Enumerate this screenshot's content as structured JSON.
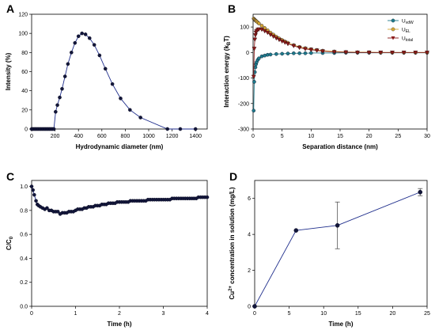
{
  "chart_data": [
    {
      "panel": "A",
      "type": "line",
      "xlabel": "Hydrodynamic diameter (nm)",
      "ylabel": "Intensity (%)",
      "xlim": [
        0,
        1500
      ],
      "ylim": [
        0,
        120
      ],
      "xticks": [
        0,
        200,
        400,
        600,
        800,
        1000,
        1200,
        1400
      ],
      "yticks": [
        0,
        20,
        40,
        60,
        80,
        100,
        120
      ],
      "colors": {
        "line": "#1f2e8c",
        "marker": "#12163a"
      },
      "series": [
        {
          "x": [
            0,
            10,
            20,
            30,
            40,
            50,
            60,
            70,
            80,
            90,
            100,
            110,
            120,
            130,
            140,
            150,
            160,
            170,
            180,
            190,
            205,
            220,
            240,
            260,
            285,
            310,
            340,
            370,
            400,
            430,
            460,
            495,
            535,
            580,
            630,
            690,
            760,
            840,
            930,
            1160,
            1270,
            1400
          ],
          "y": [
            0,
            0,
            0,
            0,
            0,
            0,
            0,
            0,
            0,
            0,
            0,
            0,
            0,
            0,
            0,
            0,
            0,
            0,
            0,
            0,
            18,
            25,
            33,
            42,
            55,
            68,
            80,
            90,
            97,
            100,
            99,
            95,
            88,
            77,
            63,
            47,
            32,
            20,
            12,
            0,
            0,
            0
          ]
        }
      ]
    },
    {
      "panel": "B",
      "type": "line",
      "xlabel": "Separation distance (nm)",
      "ylabel": "Interaction energy (kBT)",
      "xlim": [
        0,
        30
      ],
      "ylim": [
        -300,
        150
      ],
      "xticks": [
        0,
        5,
        10,
        15,
        20,
        25,
        30
      ],
      "yticks": [
        -300,
        -200,
        -100,
        0,
        100
      ],
      "legend": {
        "placement": "top-right",
        "entries": [
          "UvdW",
          "UEL",
          "Utotal"
        ]
      },
      "series": [
        {
          "name": "UvdW",
          "color": "#1f7a8c",
          "marker": "circle",
          "x": [
            0.1,
            0.2,
            0.3,
            0.4,
            0.5,
            0.6,
            0.8,
            1,
            1.5,
            2,
            2.5,
            3,
            4,
            5,
            6,
            7,
            8,
            9,
            10,
            12,
            14,
            16,
            18,
            20,
            22,
            24,
            26,
            28,
            30
          ],
          "y": [
            -228,
            -115,
            -77,
            -58,
            -46,
            -38,
            -29,
            -23,
            -15,
            -12,
            -9,
            -8,
            -6,
            -5,
            -4,
            -3,
            -3,
            -3,
            -2,
            -2,
            -2,
            -1,
            -1,
            -1,
            -1,
            -1,
            -1,
            -1,
            -1
          ]
        },
        {
          "name": "UEL",
          "color": "#d4a636",
          "marker": "circle",
          "x": [
            0.1,
            0.2,
            0.3,
            0.4,
            0.5,
            0.6,
            0.8,
            1,
            1.5,
            2,
            2.5,
            3,
            3.5,
            4,
            4.5,
            5,
            5.5,
            6,
            7,
            8,
            9,
            10,
            11,
            12,
            14,
            16,
            18,
            20,
            22,
            24,
            26,
            28,
            30
          ],
          "y": [
            133,
            130,
            128,
            126,
            124,
            122,
            118,
            114,
            105,
            96,
            87,
            78,
            70,
            62,
            55,
            49,
            43,
            38,
            29,
            22,
            17,
            13,
            10,
            7,
            4,
            2,
            1,
            1,
            0,
            0,
            0,
            0,
            0
          ]
        },
        {
          "name": "Utotal",
          "color": "#8b1a1a",
          "marker": "triangle",
          "x": [
            0.1,
            0.2,
            0.3,
            0.4,
            0.5,
            0.6,
            0.8,
            1,
            1.5,
            2,
            2.5,
            3,
            3.5,
            4,
            4.5,
            5,
            5.5,
            6,
            7,
            8,
            9,
            10,
            11,
            12,
            14,
            16,
            18,
            20,
            22,
            24,
            26,
            28,
            30
          ],
          "y": [
            -95,
            15,
            51,
            68,
            78,
            84,
            89,
            91,
            90,
            84,
            78,
            70,
            63,
            56,
            50,
            44,
            39,
            34,
            26,
            19,
            14,
            11,
            8,
            5,
            2,
            1,
            0,
            0,
            0,
            0,
            0,
            0,
            0
          ]
        }
      ]
    },
    {
      "panel": "C",
      "type": "line",
      "xlabel": "Time (h)",
      "ylabel": "C/C0",
      "xlim": [
        0,
        4
      ],
      "ylim": [
        0,
        1.05
      ],
      "xticks": [
        0,
        1,
        2,
        3,
        4
      ],
      "yticks": [
        0.0,
        0.2,
        0.4,
        0.6,
        0.8,
        1.0
      ],
      "colors": {
        "line": "#1f2e8c",
        "marker": "#12163a"
      },
      "series": [
        {
          "x": [
            0.0,
            0.03,
            0.06,
            0.1,
            0.13,
            0.16,
            0.2,
            0.25,
            0.3,
            0.35,
            0.4,
            0.45,
            0.5,
            0.55,
            0.6,
            0.65,
            0.7,
            0.75,
            0.8,
            0.85,
            0.9,
            0.95,
            1.0,
            1.05,
            1.1,
            1.15,
            1.2,
            1.25,
            1.3,
            1.35,
            1.4,
            1.45,
            1.5,
            1.55,
            1.6,
            1.65,
            1.7,
            1.75,
            1.8,
            1.85,
            1.9,
            1.95,
            2.0,
            2.05,
            2.1,
            2.15,
            2.2,
            2.25,
            2.3,
            2.35,
            2.4,
            2.45,
            2.5,
            2.55,
            2.6,
            2.65,
            2.7,
            2.75,
            2.8,
            2.85,
            2.9,
            2.95,
            3.0,
            3.05,
            3.1,
            3.15,
            3.2,
            3.25,
            3.3,
            3.35,
            3.4,
            3.45,
            3.5,
            3.55,
            3.6,
            3.65,
            3.7,
            3.75,
            3.8,
            3.85,
            3.9,
            3.95,
            4.0
          ],
          "y": [
            1.0,
            0.97,
            0.93,
            0.88,
            0.85,
            0.84,
            0.83,
            0.82,
            0.81,
            0.82,
            0.8,
            0.8,
            0.79,
            0.79,
            0.79,
            0.77,
            0.78,
            0.78,
            0.78,
            0.79,
            0.79,
            0.79,
            0.8,
            0.81,
            0.81,
            0.81,
            0.82,
            0.82,
            0.83,
            0.83,
            0.83,
            0.84,
            0.84,
            0.84,
            0.85,
            0.85,
            0.85,
            0.86,
            0.86,
            0.86,
            0.86,
            0.87,
            0.87,
            0.87,
            0.87,
            0.87,
            0.87,
            0.88,
            0.88,
            0.88,
            0.88,
            0.88,
            0.88,
            0.88,
            0.88,
            0.89,
            0.89,
            0.89,
            0.89,
            0.89,
            0.89,
            0.89,
            0.89,
            0.89,
            0.89,
            0.89,
            0.9,
            0.9,
            0.9,
            0.9,
            0.9,
            0.9,
            0.9,
            0.9,
            0.9,
            0.9,
            0.9,
            0.9,
            0.91,
            0.91,
            0.91,
            0.91,
            0.91
          ]
        }
      ]
    },
    {
      "panel": "D",
      "type": "line",
      "xlabel": "Time (h)",
      "ylabel": "Cu2+ concentration in solution (mg/L)",
      "xlim": [
        0,
        25
      ],
      "ylim": [
        0,
        7
      ],
      "xticks": [
        0,
        5,
        10,
        15,
        20,
        25
      ],
      "yticks": [
        0,
        2,
        4,
        6
      ],
      "colors": {
        "line": "#1f2e8c",
        "marker": "#12163a"
      },
      "series": [
        {
          "x": [
            0,
            6,
            12,
            24
          ],
          "y": [
            0,
            4.22,
            4.5,
            6.35
          ],
          "error": [
            0,
            0,
            1.3,
            0.2
          ]
        }
      ]
    }
  ],
  "panel_labels": [
    "A",
    "B",
    "C",
    "D"
  ]
}
